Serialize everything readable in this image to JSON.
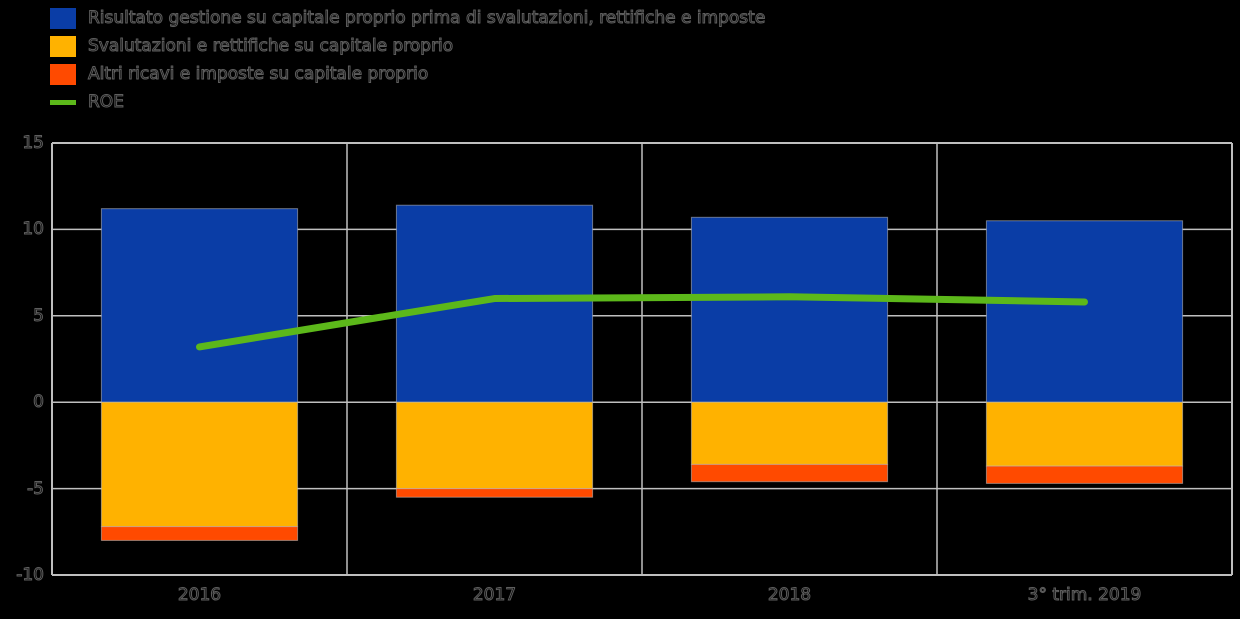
{
  "page": {
    "background_color": "#000000",
    "text_outline_color": "#5e5e5e"
  },
  "legend": {
    "position": "top-left",
    "items": [
      {
        "label": "Risultato gestione su capitale proprio prima di svalutazioni, rettifiche e imposte",
        "swatch": "box",
        "color": "#0A3DA6"
      },
      {
        "label": "Svalutazioni e rettifiche su capitale proprio",
        "swatch": "box",
        "color": "#FFB200"
      },
      {
        "label": "Altri ricavi e imposte su capitale proprio",
        "swatch": "box",
        "color": "#FF4A00"
      },
      {
        "label": "ROE",
        "swatch": "line",
        "color": "#5CB81A"
      }
    ]
  },
  "axes": {
    "y_tick_labels": [
      "15",
      "10",
      "5",
      "0",
      "-5",
      "-10"
    ],
    "y_tick_values": [
      15,
      10,
      5,
      0,
      -5,
      -10
    ],
    "x_tick_labels": [
      "2016",
      "2017",
      "2018",
      "3° trim. 2019"
    ],
    "gridline_color": "#BFBFBF"
  },
  "chart_data": {
    "type": "bar",
    "subtype": "stacked-bar-with-line",
    "title": "",
    "xlabel": "",
    "ylabel": "",
    "categories": [
      "2016",
      "2017",
      "2018",
      "3° trim. 2019"
    ],
    "series": [
      {
        "name": "Risultato gestione su capitale proprio prima di svalutazioni, rettifiche e imposte",
        "type": "bar",
        "color": "#0A3DA6",
        "values": [
          11.2,
          11.4,
          10.7,
          10.5
        ]
      },
      {
        "name": "Svalutazioni e rettifiche su capitale proprio",
        "type": "bar",
        "color": "#FFB200",
        "values": [
          -7.2,
          -5.0,
          -3.6,
          -3.7
        ]
      },
      {
        "name": "Altri ricavi e imposte su capitale proprio",
        "type": "bar",
        "color": "#FF4A00",
        "values": [
          -0.8,
          -0.5,
          -1.0,
          -1.0
        ]
      },
      {
        "name": "ROE",
        "type": "line",
        "color": "#5CB81A",
        "values": [
          3.2,
          6.0,
          6.1,
          5.8
        ]
      }
    ],
    "ylim": [
      -10,
      15
    ],
    "grid": true,
    "stacked": true,
    "legend_position": "top-left"
  }
}
